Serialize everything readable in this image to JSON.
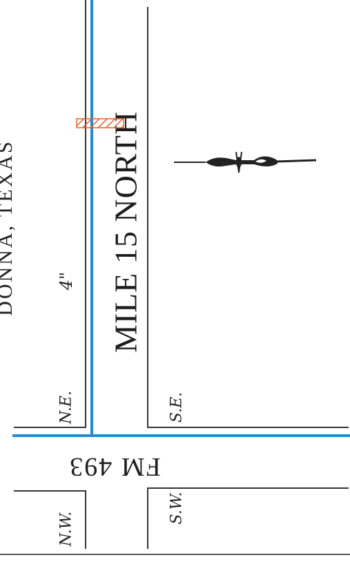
{
  "map": {
    "title": "DONNA, TEXAS",
    "street_vertical": "MILE 15 NORTH",
    "street_horizontal": "FM 493",
    "dimension": "4\"",
    "quadrants": {
      "ne": "N.E.",
      "se": "S.E.",
      "nw": "N.W.",
      "sw": "S.W."
    },
    "colors": {
      "road": "#1f8ad6",
      "marker": "#e8601c",
      "lines": "#333333"
    },
    "icons": [
      "north-arrow-icon"
    ]
  }
}
